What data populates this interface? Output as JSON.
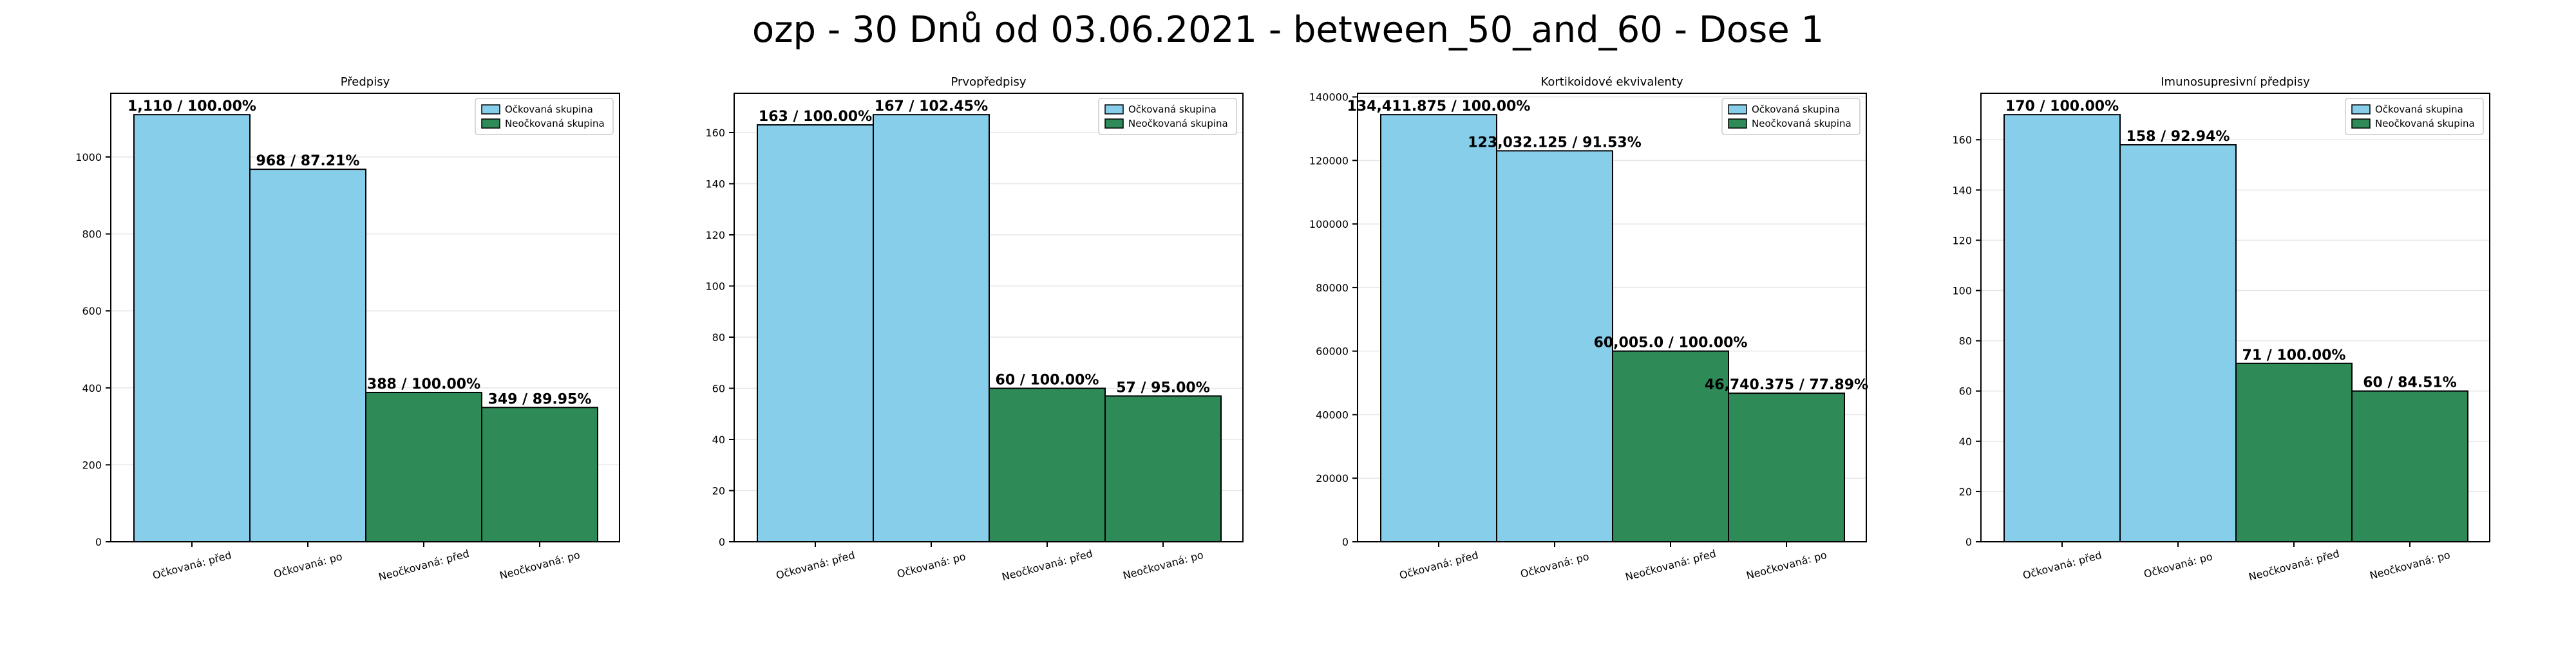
{
  "figure": {
    "title": "ozp - 30 Dnů od 03.06.2021 - between_50_and_60 - Dose 1"
  },
  "colors": {
    "vaccinated": "#87CEEB",
    "unvaccinated": "#2E8B57",
    "bar_edge": "#000000",
    "grid": "#e6e6e6"
  },
  "chart_data": [
    {
      "type": "bar",
      "title": "Předpisy",
      "categories": [
        "Očkovaná: před",
        "Očkovaná: po",
        "Neočkovaná: před",
        "Neočkovaná: po"
      ],
      "values": [
        1110,
        968,
        388,
        349
      ],
      "value_labels": [
        "1,110 / 100.00%",
        "968 / 87.21%",
        "388 / 100.00%",
        "349 / 89.95%"
      ],
      "bar_groups": [
        "vaccinated",
        "vaccinated",
        "unvaccinated",
        "unvaccinated"
      ],
      "ylim": [
        0,
        1165.5
      ],
      "yticks": [
        0,
        200,
        400,
        600,
        800,
        1000
      ],
      "ytick_labels": [
        "0",
        "200",
        "400",
        "600",
        "800",
        "1000"
      ],
      "legend": [
        "Očkovaná skupina",
        "Neočkovaná skupina"
      ],
      "legend_position": "top-right",
      "grid": true
    },
    {
      "type": "bar",
      "title": "Prvopředpisy",
      "categories": [
        "Očkovaná: před",
        "Očkovaná: po",
        "Neočkovaná: před",
        "Neočkovaná: po"
      ],
      "values": [
        163,
        167,
        60,
        57
      ],
      "value_labels": [
        "163 / 100.00%",
        "167 / 102.45%",
        "60 / 100.00%",
        "57 / 95.00%"
      ],
      "bar_groups": [
        "vaccinated",
        "vaccinated",
        "unvaccinated",
        "unvaccinated"
      ],
      "ylim": [
        0,
        175.35
      ],
      "yticks": [
        0,
        20,
        40,
        60,
        80,
        100,
        120,
        140,
        160
      ],
      "ytick_labels": [
        "0",
        "20",
        "40",
        "60",
        "80",
        "100",
        "120",
        "140",
        "160"
      ],
      "legend": [
        "Očkovaná skupina",
        "Neočkovaná skupina"
      ],
      "legend_position": "top-right",
      "grid": true
    },
    {
      "type": "bar",
      "title": "Kortikoidové ekvivalenty",
      "categories": [
        "Očkovaná: před",
        "Očkovaná: po",
        "Neočkovaná: před",
        "Neočkovaná: po"
      ],
      "values": [
        134411.875,
        123032.125,
        60005.0,
        46740.375
      ],
      "value_labels": [
        "134,411.875 / 100.00%",
        "123,032.125 / 91.53%",
        "60,005.0 / 100.00%",
        "46,740.375 / 77.89%"
      ],
      "bar_groups": [
        "vaccinated",
        "vaccinated",
        "unvaccinated",
        "unvaccinated"
      ],
      "ylim": [
        0,
        141132.5
      ],
      "yticks": [
        0,
        20000,
        40000,
        60000,
        80000,
        100000,
        120000,
        140000
      ],
      "ytick_labels": [
        "0",
        "20000",
        "40000",
        "60000",
        "80000",
        "100000",
        "120000",
        "140000"
      ],
      "legend": [
        "Očkovaná skupina",
        "Neočkovaná skupina"
      ],
      "legend_position": "top-right",
      "grid": true
    },
    {
      "type": "bar",
      "title": "Imunosupresivní předpisy",
      "categories": [
        "Očkovaná: před",
        "Očkovaná: po",
        "Neočkovaná: před",
        "Neočkovaná: po"
      ],
      "values": [
        170,
        158,
        71,
        60
      ],
      "value_labels": [
        "170 / 100.00%",
        "158 / 92.94%",
        "71 / 100.00%",
        "60 / 84.51%"
      ],
      "bar_groups": [
        "vaccinated",
        "vaccinated",
        "unvaccinated",
        "unvaccinated"
      ],
      "ylim": [
        0,
        178.5
      ],
      "yticks": [
        0,
        20,
        40,
        60,
        80,
        100,
        120,
        140,
        160
      ],
      "ytick_labels": [
        "0",
        "20",
        "40",
        "60",
        "80",
        "100",
        "120",
        "140",
        "160"
      ],
      "legend": [
        "Očkovaná skupina",
        "Neočkovaná skupina"
      ],
      "legend_position": "top-right",
      "grid": true
    }
  ]
}
